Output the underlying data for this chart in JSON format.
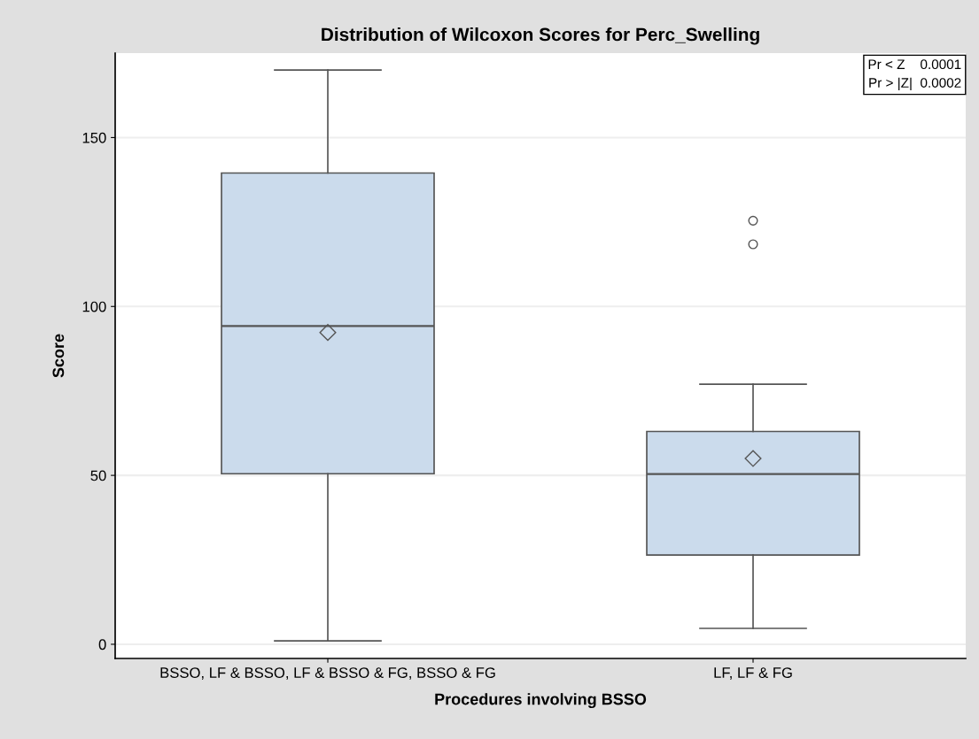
{
  "chart_data": {
    "type": "box",
    "title": "Distribution of Wilcoxon Scores for Perc_Swelling",
    "xlabel": "Procedures involving BSSO",
    "ylabel": "Score",
    "categories": [
      "BSSO, LF & BSSO, LF & BSSO & FG, BSSO & FG",
      "LF, LF & FG"
    ],
    "boxes": [
      {
        "low": 1,
        "q1": 50.5,
        "median": 94.2,
        "q3": 139.5,
        "high": 170,
        "mean": 92.3
      },
      {
        "low": 4.7,
        "q1": 26.4,
        "median": 50.4,
        "q3": 63,
        "high": 77,
        "mean": 55,
        "outliers": [
          118.4,
          125.4
        ]
      }
    ],
    "color": "#cbdbec",
    "ylim": [
      -4.2,
      175
    ],
    "yticks": [
      0,
      50,
      100,
      150
    ],
    "grid": "y",
    "annotations": [
      "Pr < Z    0.0001\nPr > |Z|  0.0002"
    ]
  }
}
